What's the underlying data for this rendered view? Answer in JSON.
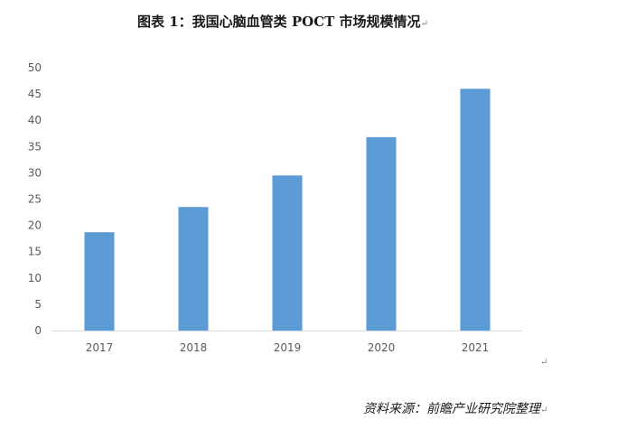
{
  "header": {
    "title": "图表 1：我国心脑血管类 POCT 市场规模情况",
    "para_mark": "↵"
  },
  "stray_mark": "↵",
  "footer": {
    "source": "资料来源：前瞻产业研究院整理",
    "para_mark": "↵"
  },
  "colors": {
    "bar": "#5b9bd5",
    "axis": "#d9d9d9",
    "tick_label": "#595959"
  },
  "chart_data": {
    "type": "bar",
    "title": "图表 1：我国心脑血管类 POCT 市场规模情况",
    "xlabel": "",
    "ylabel": "",
    "categories": [
      "2017",
      "2018",
      "2019",
      "2020",
      "2021"
    ],
    "values": [
      18.7,
      23.5,
      29.5,
      36.8,
      46.0
    ],
    "ylim": [
      0,
      50
    ],
    "yticks": [
      0,
      5,
      10,
      15,
      20,
      25,
      30,
      35,
      40,
      45,
      50
    ],
    "grid": false,
    "legend": "none"
  }
}
